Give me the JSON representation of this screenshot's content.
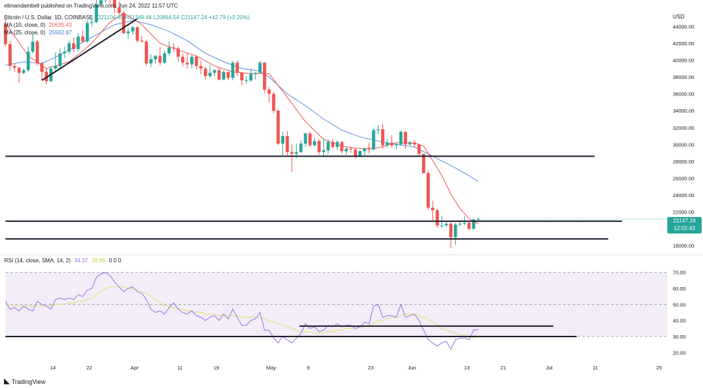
{
  "header": {
    "published": "elimandambell published on TradingView.com, Jun 24, 2022 11:57 UTC",
    "symbol": "Bitcoin / U.S. Dollar, 1D, COINBASE",
    "ohlc": "O21104.45 H21349.44 L20864.54 C21147.24 +42.79 (+0.20%)",
    "ma10_label": "MA (10, close, 0)",
    "ma10_value": "20635.43",
    "ma25_label": "MA (25, close, 0)",
    "ma25_value": "25562.87"
  },
  "price_tag": {
    "price": "21147.24",
    "countdown": "12:02:43"
  },
  "footer": {
    "brand": "TradingView"
  },
  "rsi_header": {
    "label": "RSI (14, close, SMA, 14, 2)",
    "rsi": "34.37",
    "sma": "28.95",
    "extra": "0 0 0"
  },
  "colors": {
    "up": "#26a69a",
    "down": "#ef5350",
    "ma10": "#ef5350",
    "ma25": "#5b8fe0",
    "rsi": "#9c6fde",
    "rsi_sma": "#e3e06d",
    "level": "#1e1e2e"
  },
  "chart_data": [
    {
      "type": "candlestick",
      "title": "Bitcoin / U.S. Dollar, 1D, COINBASE",
      "ylabel": "USD",
      "ylim": [
        17000,
        45500
      ],
      "x_ticks": [
        "14",
        "22",
        "Apr",
        "11",
        "19",
        "May",
        "9",
        "23",
        "Jun",
        "13",
        "21",
        "Jul",
        "11",
        "25"
      ],
      "y_ticks": [
        18000,
        20000,
        22000,
        24000,
        26000,
        28000,
        30000,
        32000,
        34000,
        36000,
        38000,
        40000,
        42000,
        44000
      ],
      "candles": [
        [
          44.2,
          41.9,
          44.9,
          41.6
        ],
        [
          41.9,
          39.3,
          42.3,
          38.8
        ],
        [
          39.3,
          39.1,
          39.6,
          38.6
        ],
        [
          39.1,
          38.5,
          39.2,
          37.3
        ],
        [
          38.5,
          38.8,
          39.0,
          38.3
        ],
        [
          38.8,
          41.0,
          41.6,
          38.6
        ],
        [
          41.0,
          42.2,
          43.1,
          40.8
        ],
        [
          42.2,
          39.6,
          42.4,
          39.3
        ],
        [
          39.6,
          38.6,
          39.8,
          37.6
        ],
        [
          38.6,
          37.5,
          39.0,
          37.1
        ],
        [
          37.5,
          39.0,
          39.3,
          37.4
        ],
        [
          39.0,
          39.3,
          40.9,
          38.6
        ],
        [
          39.3,
          40.8,
          41.4,
          39.0
        ],
        [
          40.8,
          41.0,
          41.6,
          40.2
        ],
        [
          41.0,
          42.0,
          42.3,
          40.7
        ],
        [
          42.0,
          41.3,
          42.7,
          40.9
        ],
        [
          41.3,
          42.8,
          43.2,
          41.0
        ],
        [
          42.8,
          42.2,
          43.5,
          42.0
        ],
        [
          42.2,
          44.4,
          44.7,
          42.0
        ],
        [
          44.4,
          44.5,
          45.0,
          44.0
        ],
        [
          44.5,
          46.6,
          47.6,
          44.4
        ],
        [
          46.6,
          47.1,
          48.2,
          46.6
        ],
        [
          47.1,
          47.6,
          48.0,
          46.9
        ],
        [
          47.6,
          47.3,
          47.7,
          46.5
        ],
        [
          47.3,
          46.2,
          47.6,
          45.6
        ],
        [
          46.2,
          45.6,
          46.9,
          45.4
        ],
        [
          45.6,
          43.2,
          45.8,
          43.1
        ],
        [
          43.2,
          43.4,
          43.8,
          42.5
        ],
        [
          43.4,
          43.9,
          44.0,
          43.0
        ],
        [
          43.9,
          42.3,
          44.0,
          42.1
        ],
        [
          42.3,
          42.2,
          42.9,
          42.1
        ],
        [
          42.2,
          39.6,
          42.4,
          39.3
        ],
        [
          39.6,
          40.1,
          40.7,
          39.2
        ],
        [
          40.1,
          40.5,
          40.6,
          39.6
        ],
        [
          40.5,
          39.7,
          41.5,
          39.4
        ],
        [
          39.7,
          40.8,
          41.1,
          39.6
        ],
        [
          40.8,
          41.5,
          42.2,
          40.5
        ],
        [
          41.5,
          41.4,
          42.0,
          40.9
        ],
        [
          41.4,
          40.4,
          41.6,
          39.8
        ],
        [
          40.4,
          39.7,
          40.8,
          39.2
        ],
        [
          39.7,
          39.5,
          40.8,
          39.0
        ],
        [
          39.5,
          40.4,
          40.6,
          39.0
        ],
        [
          40.4,
          39.3,
          40.6,
          38.9
        ],
        [
          39.3,
          39.0,
          39.9,
          38.3
        ],
        [
          39.0,
          38.1,
          39.2,
          37.7
        ],
        [
          38.1,
          38.5,
          39.4,
          37.9
        ],
        [
          38.5,
          38.8,
          38.9,
          38.1
        ],
        [
          38.8,
          37.7,
          39.2,
          37.6
        ],
        [
          37.7,
          38.6,
          38.8,
          37.6
        ],
        [
          38.6,
          37.9,
          38.6,
          37.6
        ],
        [
          37.9,
          39.7,
          39.9,
          37.6
        ],
        [
          39.7,
          38.5,
          40.0,
          38.1
        ],
        [
          38.5,
          37.6,
          38.6,
          37.0
        ],
        [
          37.6,
          37.6,
          38.1,
          37.2
        ],
        [
          37.6,
          38.4,
          39.0,
          37.4
        ],
        [
          38.4,
          38.5,
          38.6,
          37.7
        ],
        [
          38.5,
          39.7,
          39.9,
          38.4
        ],
        [
          39.7,
          36.5,
          39.8,
          36.1
        ],
        [
          36.5,
          36.0,
          36.8,
          35.0
        ],
        [
          36.0,
          34.0,
          36.2,
          33.7
        ],
        [
          34.0,
          30.1,
          34.2,
          29.9
        ],
        [
          30.1,
          31.0,
          31.5,
          28.7
        ],
        [
          31.0,
          29.1,
          31.6,
          28.7
        ],
        [
          29.1,
          28.9,
          30.0,
          26.7
        ],
        [
          28.9,
          29.1,
          30.1,
          28.4
        ],
        [
          29.1,
          30.1,
          30.5,
          29.0
        ],
        [
          30.1,
          31.3,
          31.4,
          29.7
        ],
        [
          31.3,
          29.9,
          31.5,
          29.7
        ],
        [
          29.9,
          30.4,
          30.8,
          29.8
        ],
        [
          30.4,
          29.1,
          30.6,
          28.8
        ],
        [
          29.1,
          29.3,
          30.6,
          28.7
        ],
        [
          29.3,
          30.3,
          30.6,
          28.9
        ],
        [
          30.3,
          29.7,
          30.7,
          29.5
        ],
        [
          29.7,
          30.3,
          30.5,
          29.3
        ],
        [
          30.3,
          29.2,
          30.4,
          28.9
        ],
        [
          29.2,
          29.5,
          29.7,
          28.8
        ],
        [
          29.5,
          29.4,
          29.7,
          29.0
        ],
        [
          29.4,
          28.6,
          29.6,
          28.3
        ],
        [
          28.6,
          29.2,
          29.4,
          28.5
        ],
        [
          29.2,
          29.5,
          29.6,
          28.6
        ],
        [
          29.5,
          29.4,
          30.2,
          28.9
        ],
        [
          29.4,
          31.7,
          31.9,
          29.3
        ],
        [
          31.7,
          31.8,
          32.3,
          31.2
        ],
        [
          31.8,
          29.9,
          32.4,
          29.5
        ],
        [
          29.9,
          30.2,
          30.6,
          29.6
        ],
        [
          30.2,
          29.9,
          31.1,
          29.6
        ],
        [
          29.9,
          30.0,
          30.3,
          29.4
        ],
        [
          30.0,
          31.5,
          31.7,
          29.9
        ],
        [
          31.5,
          30.0,
          31.6,
          29.5
        ],
        [
          30.0,
          30.2,
          30.4,
          29.9
        ],
        [
          30.2,
          30.0,
          30.5,
          29.6
        ],
        [
          30.0,
          28.9,
          30.0,
          28.6
        ],
        [
          28.9,
          26.6,
          28.9,
          26.6
        ],
        [
          26.6,
          22.5,
          26.9,
          22.3
        ],
        [
          22.5,
          22.2,
          23.3,
          20.8
        ],
        [
          22.2,
          20.4,
          22.4,
          20.1
        ],
        [
          20.4,
          20.4,
          21.5,
          20.1
        ],
        [
          20.4,
          20.6,
          20.9,
          20.2
        ],
        [
          20.6,
          19.0,
          20.8,
          17.7
        ],
        [
          19.0,
          20.5,
          20.7,
          18.1
        ],
        [
          20.5,
          20.6,
          21.0,
          20.3
        ],
        [
          20.6,
          20.7,
          21.5,
          20.4
        ],
        [
          20.7,
          20.0,
          20.9,
          19.8
        ],
        [
          20.0,
          21.1,
          21.2,
          19.9
        ],
        [
          21.1,
          21.15,
          21.35,
          20.86
        ]
      ],
      "ma10": [
        [
          0,
          44.4
        ],
        [
          5,
          40.5
        ],
        [
          9,
          39.0
        ],
        [
          14,
          39.8
        ],
        [
          19,
          42.0
        ],
        [
          23,
          44.5
        ],
        [
          26,
          45.6
        ],
        [
          30,
          44.2
        ],
        [
          34,
          42.0
        ],
        [
          38,
          41.2
        ],
        [
          42,
          40.5
        ],
        [
          46,
          39.3
        ],
        [
          50,
          38.6
        ],
        [
          54,
          38.4
        ],
        [
          58,
          38.4
        ],
        [
          62,
          35.6
        ],
        [
          66,
          32.7
        ],
        [
          70,
          30.6
        ],
        [
          74,
          29.8
        ],
        [
          78,
          29.5
        ],
        [
          82,
          29.6
        ],
        [
          86,
          30.2
        ],
        [
          90,
          30.2
        ],
        [
          92,
          29.8
        ],
        [
          94,
          28.1
        ],
        [
          96,
          26.3
        ],
        [
          98,
          24.1
        ],
        [
          100,
          22.4
        ],
        [
          102,
          21.2
        ],
        [
          104,
          20.6
        ]
      ],
      "ma25": [
        [
          0,
          39.4
        ],
        [
          4,
          39.8
        ],
        [
          8,
          39.6
        ],
        [
          12,
          40.6
        ],
        [
          16,
          41.8
        ],
        [
          20,
          43.0
        ],
        [
          24,
          44.2
        ],
        [
          28,
          44.7
        ],
        [
          32,
          44.2
        ],
        [
          36,
          43.4
        ],
        [
          40,
          42.3
        ],
        [
          44,
          40.8
        ],
        [
          48,
          39.8
        ],
        [
          52,
          39.0
        ],
        [
          56,
          38.7
        ],
        [
          58,
          38.0
        ],
        [
          62,
          36.0
        ],
        [
          66,
          34.6
        ],
        [
          70,
          33.0
        ],
        [
          74,
          31.7
        ],
        [
          78,
          30.9
        ],
        [
          82,
          30.4
        ],
        [
          86,
          30.0
        ],
        [
          90,
          29.7
        ],
        [
          94,
          28.6
        ],
        [
          98,
          27.5
        ],
        [
          102,
          26.3
        ],
        [
          104,
          25.6
        ]
      ],
      "levels": [
        28600,
        20900,
        18800
      ],
      "trendline": [
        [
          8,
          37.6
        ],
        [
          29,
          44.9
        ]
      ]
    },
    {
      "type": "line",
      "title": "RSI (14, close, SMA, 14, 2)",
      "ylim": [
        15,
        75
      ],
      "y_ticks": [
        20.0,
        30.0,
        40.0,
        50.0,
        60.0,
        70.0
      ],
      "bands": [
        30,
        50,
        70
      ],
      "series": [
        {
          "name": "RSI",
          "values": [
            52,
            47,
            48,
            46,
            49,
            47,
            46,
            52,
            50,
            49,
            47,
            53,
            54,
            53,
            54,
            53,
            56,
            55,
            59,
            60,
            67,
            69,
            70,
            68,
            64,
            61,
            58,
            60,
            61,
            58,
            57,
            53,
            47,
            45,
            46,
            44,
            48,
            51,
            47,
            45,
            44,
            46,
            43,
            42,
            40,
            42,
            43,
            40,
            44,
            41,
            47,
            42,
            37,
            37,
            40,
            41,
            45,
            34,
            34,
            29,
            26,
            30,
            28,
            26,
            29,
            32,
            38,
            35,
            36,
            33,
            34,
            37,
            36,
            38,
            36,
            37,
            37,
            35,
            36,
            39,
            38,
            49,
            50,
            42,
            43,
            43,
            42,
            50,
            42,
            43,
            44,
            40,
            34,
            28,
            26,
            24,
            26,
            27,
            22,
            28,
            29,
            29,
            28,
            34,
            34.37
          ]
        },
        {
          "name": "SMA",
          "values": [
            50,
            50,
            49,
            49,
            49,
            49,
            49,
            49,
            49,
            49,
            49,
            50,
            50,
            50,
            51,
            51,
            52,
            52,
            53,
            54,
            56,
            58,
            60,
            61,
            61,
            61,
            61,
            60,
            60,
            59,
            58,
            57,
            55,
            53,
            51,
            49,
            49,
            48,
            47,
            47,
            46,
            46,
            45,
            45,
            44,
            44,
            44,
            43,
            43,
            43,
            43,
            43,
            42,
            42,
            42,
            42,
            42,
            41,
            40,
            39,
            38,
            37,
            36,
            35,
            34,
            33,
            33,
            33,
            32,
            32,
            32,
            33,
            33,
            34,
            34,
            35,
            35,
            35,
            36,
            36,
            37,
            38,
            40,
            40,
            41,
            42,
            42,
            43,
            44,
            44,
            44,
            43,
            42,
            41,
            39,
            37,
            35,
            34,
            33,
            32,
            31,
            31,
            30,
            29,
            28.95
          ]
        }
      ],
      "levels": [
        36.5,
        30.0
      ]
    }
  ]
}
